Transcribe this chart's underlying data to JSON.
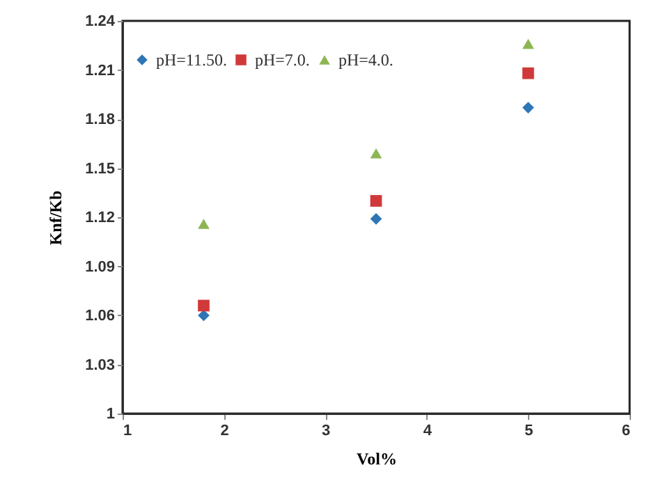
{
  "chart_data": {
    "type": "scatter",
    "xlabel": "Vol%",
    "ylabel": "Knf/Kb",
    "x": [
      1.8,
      3.5,
      5
    ],
    "series": [
      {
        "name": "pH=11.50.",
        "color": "#2e75b6",
        "marker": "diamond",
        "values": [
          1.06,
          1.119,
          1.187
        ]
      },
      {
        "name": "pH=7.0.",
        "color": "#d0393a",
        "marker": "square",
        "values": [
          1.066,
          1.13,
          1.208
        ]
      },
      {
        "name": "pH=4.0.",
        "color": "#8db653",
        "marker": "triangle",
        "values": [
          1.116,
          1.159,
          1.226
        ]
      }
    ],
    "xlim": [
      1,
      6
    ],
    "xticks": [
      1,
      2,
      3,
      4,
      5,
      6
    ],
    "ylim": [
      1,
      1.24
    ],
    "yticks": [
      1,
      1.03,
      1.06,
      1.09,
      1.12,
      1.15,
      1.18,
      1.21,
      1.24
    ],
    "grid": false,
    "legend": "top left"
  }
}
